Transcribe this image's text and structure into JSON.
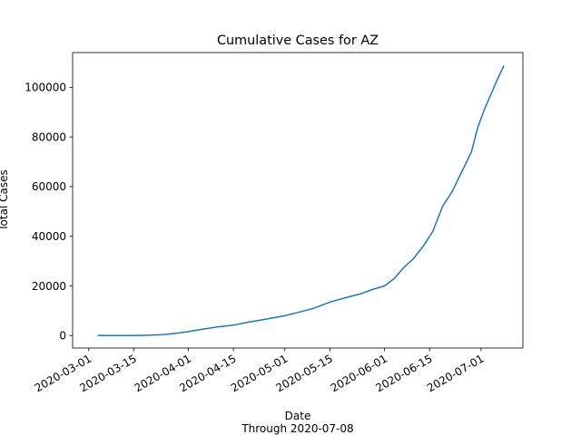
{
  "chart_data": {
    "type": "line",
    "title": "Cumulative Cases for AZ",
    "xlabel": "Date",
    "xlabel_sub": "Through 2020-07-08",
    "ylabel": "Total Cases",
    "x_ticks": [
      "2020-03-01",
      "2020-03-15",
      "2020-04-01",
      "2020-04-15",
      "2020-05-01",
      "2020-05-15",
      "2020-06-01",
      "2020-06-15",
      "2020-07-01"
    ],
    "y_ticks": [
      0,
      20000,
      40000,
      60000,
      80000,
      100000
    ],
    "xlim": [
      "2020-02-25",
      "2020-07-14"
    ],
    "ylim": [
      -5000,
      114000
    ],
    "grid": false,
    "line_color": "#1f77b4",
    "series": [
      {
        "x": [
          "2020-03-04",
          "2020-03-10",
          "2020-03-15",
          "2020-03-20",
          "2020-03-24",
          "2020-03-28",
          "2020-04-01",
          "2020-04-05",
          "2020-04-10",
          "2020-04-15",
          "2020-04-20",
          "2020-04-25",
          "2020-05-01",
          "2020-05-05",
          "2020-05-10",
          "2020-05-15",
          "2020-05-20",
          "2020-05-25",
          "2020-05-28",
          "2020-06-01",
          "2020-06-04",
          "2020-06-07",
          "2020-06-10",
          "2020-06-13",
          "2020-06-16",
          "2020-06-19",
          "2020-06-22",
          "2020-06-25",
          "2020-06-28",
          "2020-06-30",
          "2020-07-02",
          "2020-07-04",
          "2020-07-06",
          "2020-07-08"
        ],
        "y": [
          0,
          10,
          20,
          150,
          400,
          900,
          1600,
          2500,
          3500,
          4200,
          5500,
          6600,
          8000,
          9300,
          11000,
          13500,
          15300,
          17000,
          18500,
          20000,
          23000,
          27500,
          31000,
          36000,
          42000,
          52000,
          58000,
          66000,
          74000,
          84000,
          91000,
          97000,
          103000,
          108500
        ]
      }
    ]
  }
}
